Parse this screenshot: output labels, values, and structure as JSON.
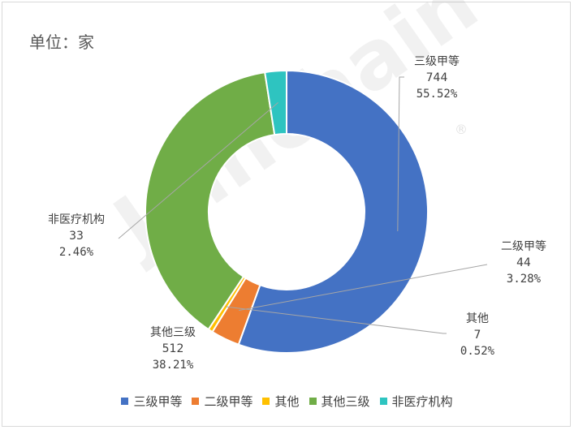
{
  "unit_label": "单位：家",
  "watermark": "Joinchain",
  "registered_mark": "®",
  "chart_data": {
    "type": "pie",
    "variant": "donut",
    "title": "",
    "categories": [
      "三级甲等",
      "二级甲等",
      "其他",
      "其他三级",
      "非医疗机构"
    ],
    "values": [
      744,
      44,
      7,
      512,
      33
    ],
    "percent_labels": [
      "55.52%",
      "3.28%",
      "0.52%",
      "38.21%",
      "2.46%"
    ],
    "colors": [
      "#4472c4",
      "#ed7d31",
      "#ffc000",
      "#70ad47",
      "#2ec4c0"
    ],
    "legend_position": "bottom"
  }
}
